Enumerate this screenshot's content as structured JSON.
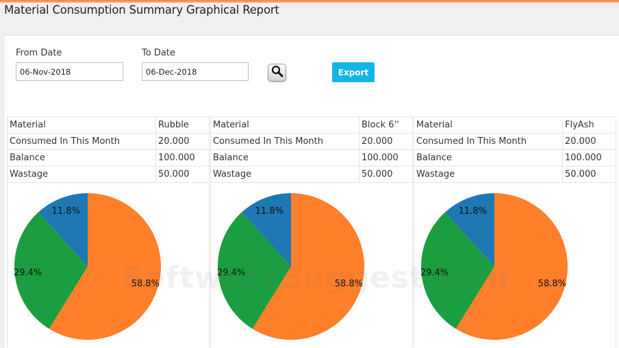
{
  "page": {
    "title": "Material Consumption Summary Graphical Report"
  },
  "filters": {
    "from_label": "From Date",
    "from_value": "06-Nov-2018",
    "to_label": "To Date",
    "to_value": "06-Dec-2018",
    "search_icon": "magnifier-icon",
    "export_label": "Export"
  },
  "colors": {
    "accent_bar": "#ff7a3c",
    "export_button": "#12b5e5",
    "slice_balance": "#ff7f2a",
    "slice_wastage": "#1a9e3f",
    "slice_consumed": "#1f77b4"
  },
  "cards": [
    {
      "rows": [
        {
          "label": "Material",
          "value": "Rubble"
        },
        {
          "label": "Consumed In This Month",
          "value": "20.000"
        },
        {
          "label": "Balance",
          "value": "100.000"
        },
        {
          "label": "Wastage",
          "value": "50.000"
        }
      ]
    },
    {
      "rows": [
        {
          "label": "Material",
          "value": "Block 6''"
        },
        {
          "label": "Consumed In This Month",
          "value": "20.000"
        },
        {
          "label": "Balance",
          "value": "100.000"
        },
        {
          "label": "Wastage",
          "value": "50.000"
        }
      ]
    },
    {
      "rows": [
        {
          "label": "Material",
          "value": "FlyAsh"
        },
        {
          "label": "Consumed In This Month",
          "value": "20.000"
        },
        {
          "label": "Balance",
          "value": "100.000"
        },
        {
          "label": "Wastage",
          "value": "50.000"
        }
      ]
    }
  ],
  "chart_data": [
    {
      "type": "pie",
      "material": "Rubble",
      "slices": [
        {
          "name": "Balance",
          "value": 100,
          "percent_label": "58.8%",
          "color": "#ff7f2a"
        },
        {
          "name": "Wastage",
          "value": 50,
          "percent_label": "29.4%",
          "color": "#1a9e3f"
        },
        {
          "name": "Consumed In This Month",
          "value": 20,
          "percent_label": "11.8%",
          "color": "#1f77b4"
        }
      ]
    },
    {
      "type": "pie",
      "material": "Block 6''",
      "slices": [
        {
          "name": "Balance",
          "value": 100,
          "percent_label": "58.8%",
          "color": "#ff7f2a"
        },
        {
          "name": "Wastage",
          "value": 50,
          "percent_label": "29.4%",
          "color": "#1a9e3f"
        },
        {
          "name": "Consumed In This Month",
          "value": 20,
          "percent_label": "11.8%",
          "color": "#1f77b4"
        }
      ]
    },
    {
      "type": "pie",
      "material": "FlyAsh",
      "slices": [
        {
          "name": "Balance",
          "value": 100,
          "percent_label": "58.8%",
          "color": "#ff7f2a"
        },
        {
          "name": "Wastage",
          "value": 50,
          "percent_label": "29.4%",
          "color": "#1a9e3f"
        },
        {
          "name": "Consumed In This Month",
          "value": 20,
          "percent_label": "11.8%",
          "color": "#1f77b4"
        }
      ]
    }
  ],
  "watermark": {
    "text": "SoftwareSuggest.com"
  }
}
